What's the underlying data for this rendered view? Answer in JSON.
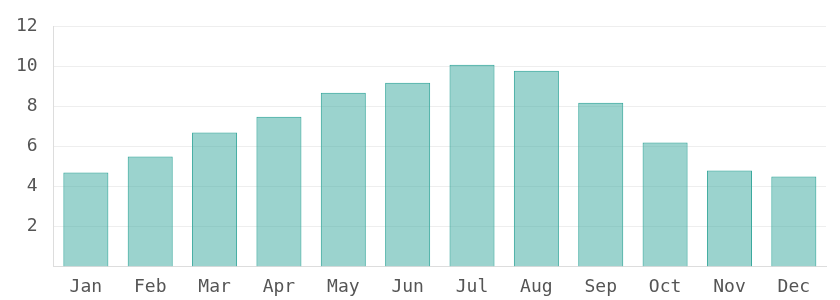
{
  "chart_data": {
    "type": "bar",
    "categories": [
      "Jan",
      "Feb",
      "Mar",
      "Apr",
      "May",
      "Jun",
      "Jul",
      "Aug",
      "Sep",
      "Oct",
      "Nov",
      "Dec"
    ],
    "values": [
      4.7,
      5.5,
      6.7,
      7.5,
      8.7,
      9.2,
      10.1,
      9.8,
      8.2,
      6.2,
      4.8,
      4.5
    ],
    "color": "#38a89d",
    "ylim": [
      0,
      12
    ],
    "yticks": [
      2,
      4,
      6,
      8,
      10,
      12
    ],
    "grid": true
  }
}
